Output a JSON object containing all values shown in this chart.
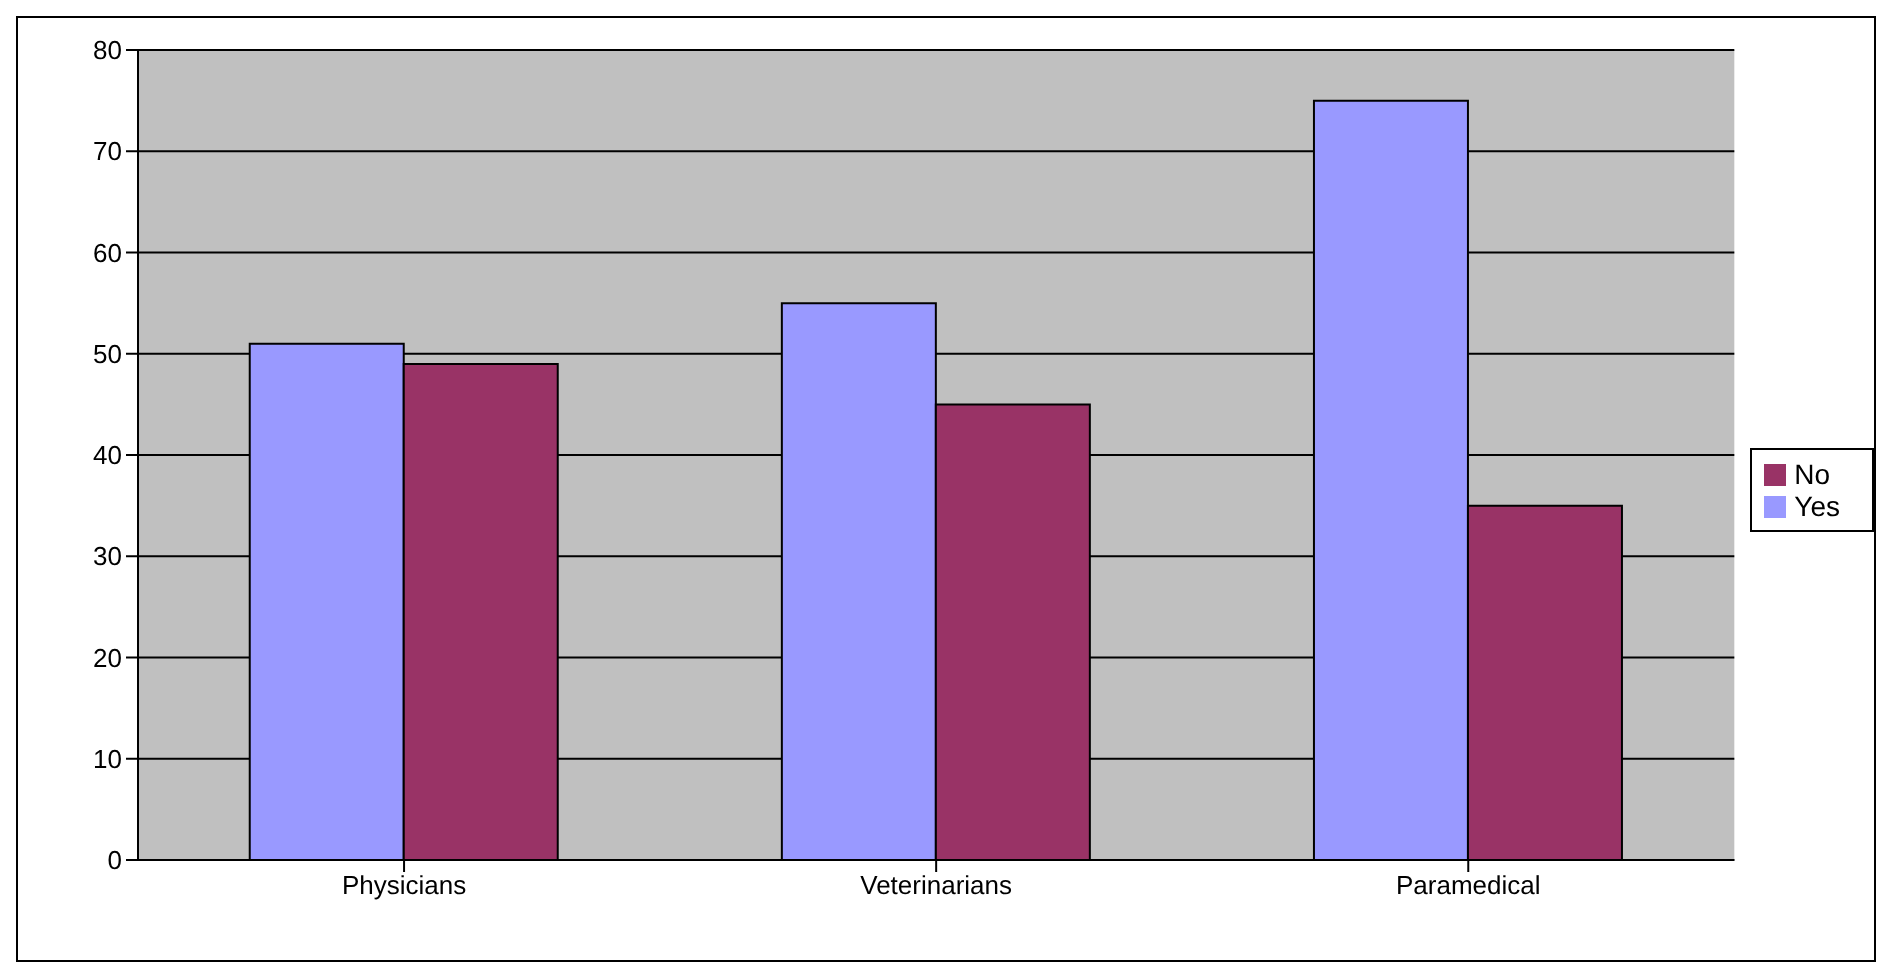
{
  "chart_data": {
    "type": "bar",
    "categories": [
      "Physicians",
      "Veterinarians",
      "Paramedical"
    ],
    "series": [
      {
        "name": "Yes",
        "color": "#9999ff",
        "values": [
          51,
          55,
          75
        ]
      },
      {
        "name": "No",
        "color": "#993366",
        "values": [
          49,
          45,
          35
        ]
      }
    ],
    "ylim": [
      0,
      80
    ],
    "yticks": [
      0,
      10,
      20,
      30,
      40,
      50,
      60,
      70,
      80
    ],
    "grid": "y",
    "legend": "right"
  }
}
